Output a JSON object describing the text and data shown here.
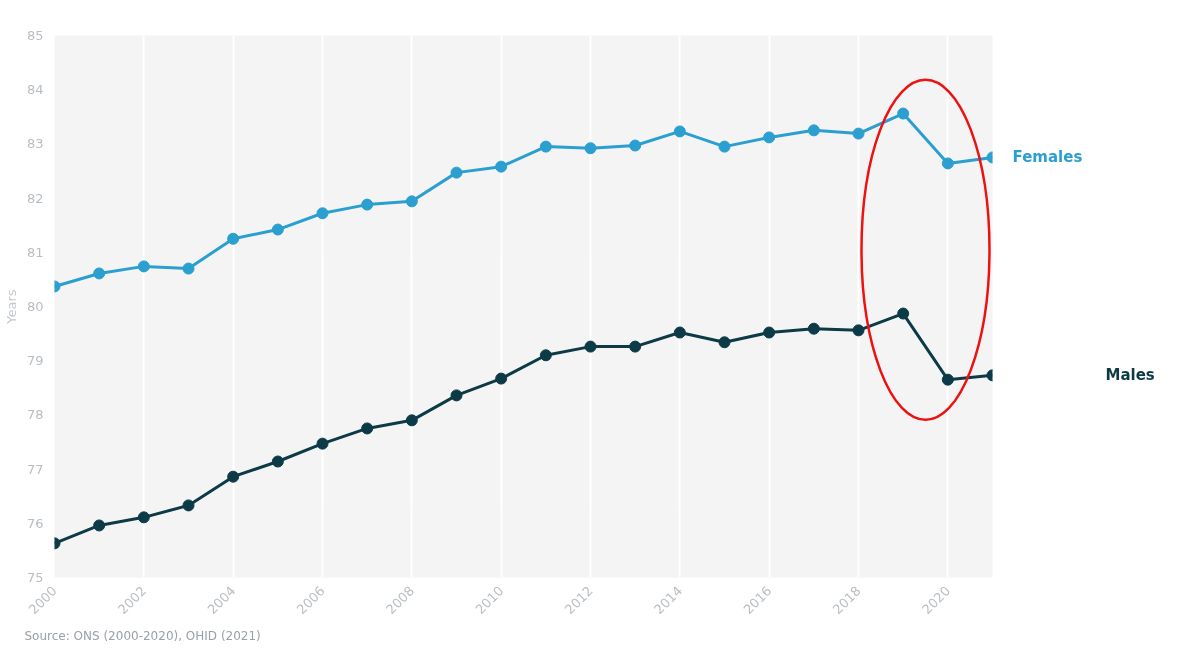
{
  "chart_data": {
    "type": "line",
    "ylabel": "Years",
    "x": [
      2000,
      2001,
      2002,
      2003,
      2004,
      2005,
      2006,
      2007,
      2008,
      2009,
      2010,
      2011,
      2012,
      2013,
      2014,
      2015,
      2016,
      2017,
      2018,
      2019,
      2020,
      2021
    ],
    "series": [
      {
        "name": "Females",
        "color": "#2a9fd0",
        "values": [
          80.37,
          80.61,
          80.74,
          80.7,
          81.25,
          81.42,
          81.72,
          81.88,
          81.94,
          82.47,
          82.58,
          82.95,
          82.92,
          82.97,
          83.23,
          82.95,
          83.12,
          83.25,
          83.19,
          83.56,
          82.64,
          82.75
        ]
      },
      {
        "name": "Males",
        "color": "#0d3a47",
        "values": [
          75.63,
          75.96,
          76.11,
          76.33,
          76.86,
          77.14,
          77.47,
          77.75,
          77.9,
          78.36,
          78.67,
          79.1,
          79.26,
          79.26,
          79.52,
          79.34,
          79.52,
          79.59,
          79.56,
          79.87,
          78.65,
          78.73
        ]
      }
    ],
    "xlim": [
      2000,
      2021
    ],
    "xticks": [
      2000,
      2002,
      2004,
      2006,
      2008,
      2010,
      2012,
      2014,
      2016,
      2018,
      2020
    ],
    "ylim": [
      75,
      85
    ],
    "yticks": [
      75,
      76,
      77,
      78,
      79,
      80,
      81,
      82,
      83,
      84,
      85
    ],
    "grid": "x",
    "legend": false,
    "marker": "circle",
    "line_style": "solid",
    "annotations": [
      "Source: ONS (2000-2020), OHID (2021)"
    ]
  }
}
